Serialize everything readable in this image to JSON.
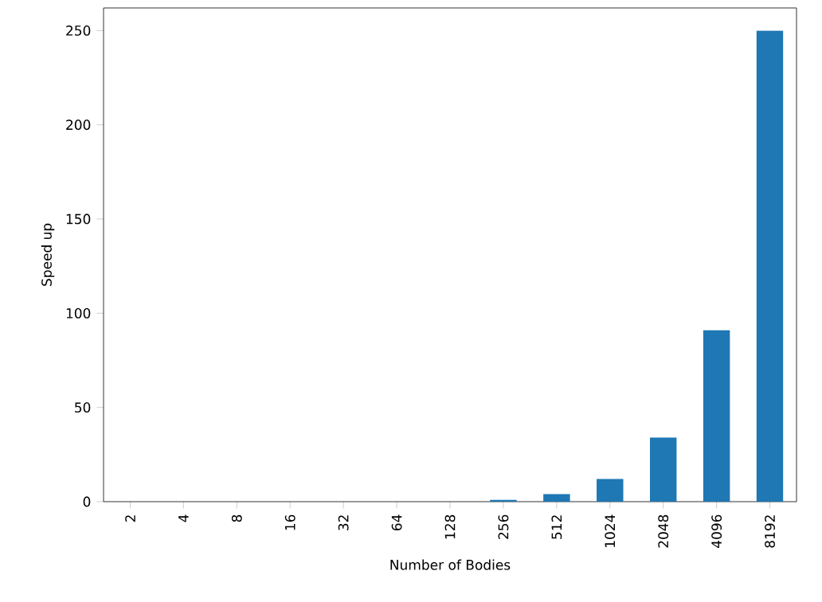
{
  "chart_data": {
    "type": "bar",
    "xlabel": "Number of Bodies",
    "ylabel": "Speed up",
    "categories": [
      "2",
      "4",
      "8",
      "16",
      "32",
      "64",
      "128",
      "256",
      "512",
      "1024",
      "2048",
      "4096",
      "8192"
    ],
    "values": [
      0,
      0,
      0,
      0,
      0,
      0,
      0,
      1,
      4,
      12,
      34,
      91,
      250
    ],
    "color": "#1f77b4",
    "ylim": [
      0,
      262
    ],
    "yticks": [
      0,
      50,
      100,
      150,
      200,
      250
    ]
  }
}
